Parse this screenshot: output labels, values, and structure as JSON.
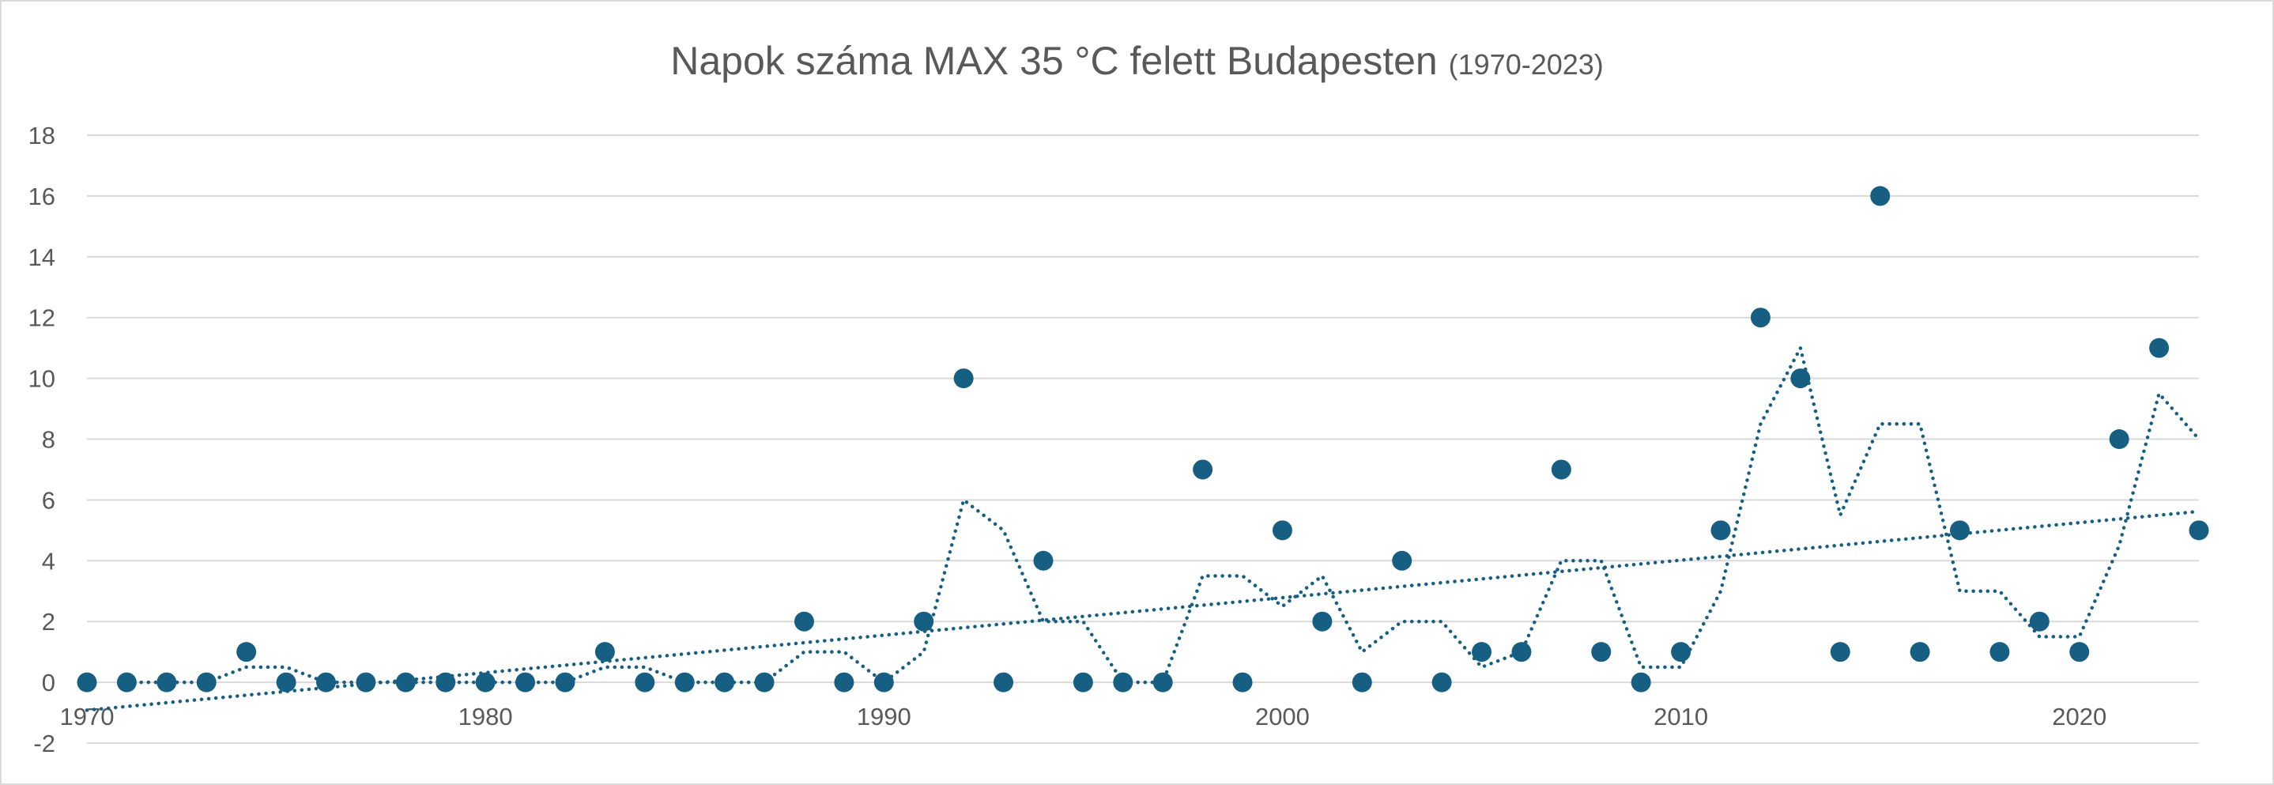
{
  "chart_data": {
    "type": "scatter",
    "title": "Napok száma MAX 35 °C felett Budapesten",
    "subtitle": "(1970-2023)",
    "xlabel": "",
    "ylabel": "",
    "xlim": [
      1970,
      2023
    ],
    "ylim": [
      -2,
      18
    ],
    "yticks": [
      "-2",
      "0",
      "2",
      "4",
      "6",
      "8",
      "10",
      "12",
      "14",
      "16",
      "18"
    ],
    "xticks": [
      "1970",
      "1980",
      "1990",
      "2000",
      "2010",
      "2020"
    ],
    "grid": true,
    "legend": "none",
    "color": "#175f82",
    "x": [
      1970,
      1971,
      1972,
      1973,
      1974,
      1975,
      1976,
      1977,
      1978,
      1979,
      1980,
      1981,
      1982,
      1983,
      1984,
      1985,
      1986,
      1987,
      1988,
      1989,
      1990,
      1991,
      1992,
      1993,
      1994,
      1995,
      1996,
      1997,
      1998,
      1999,
      2000,
      2001,
      2002,
      2003,
      2004,
      2005,
      2006,
      2007,
      2008,
      2009,
      2010,
      2011,
      2012,
      2013,
      2014,
      2015,
      2016,
      2017,
      2018,
      2019,
      2020,
      2021,
      2022,
      2023
    ],
    "values": [
      0,
      0,
      0,
      0,
      1,
      0,
      0,
      0,
      0,
      0,
      0,
      0,
      0,
      1,
      0,
      0,
      0,
      0,
      2,
      0,
      0,
      2,
      10,
      0,
      4,
      0,
      0,
      0,
      7,
      0,
      5,
      2,
      0,
      4,
      0,
      1,
      1,
      7,
      1,
      0,
      1,
      5,
      12,
      10,
      1,
      16,
      1,
      5,
      1,
      2,
      1,
      8,
      11,
      5
    ],
    "trendlines": [
      {
        "type": "moving-average",
        "period": 2,
        "style": "dotted"
      },
      {
        "type": "linear",
        "style": "dotted"
      }
    ]
  }
}
